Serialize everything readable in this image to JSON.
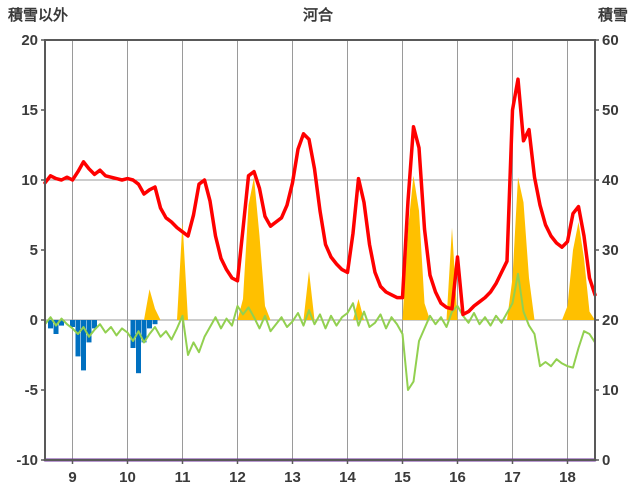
{
  "header": {
    "left_axis_title": "積雪以外",
    "title": "河合",
    "right_axis_title": "積雪"
  },
  "chart_data": {
    "type": "line",
    "title": "河合",
    "left_axis": {
      "label": "積雪以外",
      "min": -10,
      "max": 20,
      "ticks": [
        20,
        15,
        10,
        5,
        0,
        -5,
        -10
      ]
    },
    "right_axis": {
      "label": "積雪",
      "min": 0,
      "max": 60,
      "ticks": [
        60,
        50,
        40,
        30,
        20,
        10,
        0
      ]
    },
    "x_axis": {
      "min": 8.5,
      "max": 18.5,
      "ticks": [
        9,
        10,
        11,
        12,
        13,
        14,
        15,
        16,
        17,
        18
      ]
    },
    "h_gridlines_left": [
      0,
      10
    ],
    "colors": {
      "grid": "#9a9a9a",
      "border": "#595959",
      "background": "#ffffff"
    },
    "x": [
      8.5,
      8.6,
      8.7,
      8.8,
      8.9,
      9.0,
      9.1,
      9.2,
      9.3,
      9.4,
      9.5,
      9.6,
      9.7,
      9.8,
      9.9,
      10.0,
      10.1,
      10.2,
      10.3,
      10.4,
      10.5,
      10.6,
      10.7,
      10.8,
      10.9,
      11.0,
      11.1,
      11.2,
      11.3,
      11.4,
      11.5,
      11.6,
      11.7,
      11.8,
      11.9,
      12.0,
      12.1,
      12.2,
      12.3,
      12.4,
      12.5,
      12.6,
      12.7,
      12.8,
      12.9,
      13.0,
      13.1,
      13.2,
      13.3,
      13.4,
      13.5,
      13.6,
      13.7,
      13.8,
      13.9,
      14.0,
      14.1,
      14.2,
      14.3,
      14.4,
      14.5,
      14.6,
      14.7,
      14.8,
      14.9,
      15.0,
      15.1,
      15.2,
      15.3,
      15.4,
      15.5,
      15.6,
      15.7,
      15.8,
      15.9,
      16.0,
      16.1,
      16.2,
      16.3,
      16.4,
      16.5,
      16.6,
      16.7,
      16.8,
      16.9,
      17.0,
      17.1,
      17.2,
      17.3,
      17.4,
      17.5,
      17.6,
      17.7,
      17.8,
      17.9,
      18.0,
      18.1,
      18.2,
      18.3,
      18.4,
      18.5
    ],
    "series": [
      {
        "name": "orange-area",
        "type": "area",
        "axis": "left",
        "color": "#FFC000",
        "values": [
          0,
          0,
          0,
          0,
          0,
          0,
          0,
          0,
          0,
          0,
          0,
          0,
          0,
          0,
          0,
          0,
          0,
          0,
          0,
          2.2,
          0.8,
          0,
          0,
          0,
          0,
          7,
          0,
          0,
          0,
          0,
          0,
          0,
          0,
          0,
          0,
          0,
          1.5,
          8.2,
          10.2,
          6,
          1,
          0,
          0,
          0,
          0,
          0,
          0,
          0,
          3.5,
          0,
          0,
          0,
          0,
          0,
          0,
          0,
          0,
          1.5,
          0,
          0,
          0,
          0,
          0,
          0,
          0,
          0,
          6.5,
          10.3,
          7.8,
          1.2,
          0,
          0,
          0,
          0,
          6.6,
          0,
          0,
          0,
          0,
          0,
          0,
          0,
          0,
          0,
          0,
          3,
          10.2,
          8.4,
          3,
          0,
          0,
          0,
          0,
          0,
          0,
          1,
          5,
          7,
          4.4,
          0.6,
          0
        ]
      },
      {
        "name": "blue-bars",
        "type": "bar",
        "axis": "left",
        "color": "#0070C0",
        "values": [
          0,
          -0.6,
          -1.0,
          -0.4,
          0,
          -0.5,
          -2.6,
          -3.6,
          -1.6,
          -0.6,
          0,
          0,
          0,
          0,
          0,
          0,
          -2.0,
          -3.8,
          -1.6,
          -0.6,
          -0.3,
          0,
          0,
          0,
          0,
          0,
          0,
          0,
          0,
          0,
          0,
          0,
          0,
          0,
          0,
          0,
          0,
          0,
          0,
          0,
          0,
          0,
          0,
          0,
          0,
          0,
          0,
          0,
          0,
          0,
          0,
          0,
          0,
          0,
          0,
          0,
          0,
          0,
          0,
          0,
          0,
          0,
          0,
          0,
          0,
          0,
          0,
          0,
          0,
          0,
          0,
          0,
          0,
          0,
          0,
          0,
          0,
          0,
          0,
          0,
          0,
          0,
          0,
          0,
          0,
          0,
          0,
          0,
          0,
          0,
          0,
          0,
          0,
          0,
          0,
          0,
          0,
          0,
          0,
          0,
          0
        ]
      },
      {
        "name": "purple-line",
        "type": "line",
        "axis": "right",
        "color": "#7030A0",
        "width": 3,
        "constant": 0
      },
      {
        "name": "green-line",
        "type": "line",
        "axis": "left",
        "color": "#92D050",
        "width": 2,
        "values": [
          -0.3,
          0.2,
          -0.4,
          0.1,
          -0.3,
          -0.6,
          -1.0,
          -0.5,
          -1.2,
          -0.7,
          -0.3,
          -0.9,
          -0.5,
          -1.1,
          -0.6,
          -0.9,
          -1.5,
          -0.8,
          -1.6,
          -1.0,
          -0.5,
          -1.2,
          -0.8,
          -1.4,
          -0.6,
          0.3,
          -2.5,
          -1.6,
          -2.3,
          -1.2,
          -0.5,
          0.2,
          -0.6,
          0.1,
          -0.4,
          1.0,
          0.4,
          0.9,
          0.2,
          -0.6,
          0.3,
          -0.8,
          -0.3,
          0.2,
          -0.5,
          -0.1,
          0.5,
          -0.4,
          0.7,
          -0.3,
          0.4,
          -0.6,
          0.3,
          -0.4,
          0.2,
          0.5,
          1.2,
          -0.4,
          0.6,
          -0.5,
          -0.2,
          0.4,
          -0.6,
          0.2,
          -0.3,
          -1.0,
          -5.0,
          -4.4,
          -1.5,
          -0.6,
          0.3,
          -0.3,
          0.2,
          -0.5,
          0.6,
          1.0,
          0.3,
          -0.2,
          0.5,
          -0.3,
          0.2,
          -0.4,
          0.3,
          -0.2,
          0.5,
          1.2,
          3.3,
          0.6,
          -0.4,
          -1.0,
          -3.3,
          -3.0,
          -3.3,
          -2.8,
          -3.1,
          -3.3,
          -3.4,
          -2.0,
          -0.8,
          -1.0,
          -1.6
        ]
      },
      {
        "name": "red-line",
        "type": "line",
        "axis": "left",
        "color": "#FF0000",
        "width": 3.5,
        "values": [
          9.8,
          10.3,
          10.1,
          10.0,
          10.2,
          10.0,
          10.6,
          11.3,
          10.8,
          10.4,
          10.7,
          10.3,
          10.2,
          10.1,
          10.0,
          10.1,
          10.0,
          9.7,
          9.0,
          9.3,
          9.5,
          8.0,
          7.3,
          7.0,
          6.6,
          6.3,
          6.0,
          7.5,
          9.7,
          10.0,
          8.5,
          6.0,
          4.4,
          3.6,
          3.0,
          2.8,
          6.5,
          10.3,
          10.6,
          9.4,
          7.4,
          6.7,
          7.0,
          7.3,
          8.2,
          9.8,
          12.2,
          13.3,
          12.9,
          10.8,
          7.8,
          5.4,
          4.5,
          4.0,
          3.6,
          3.4,
          6.2,
          10.1,
          8.4,
          5.4,
          3.4,
          2.4,
          2.0,
          1.8,
          1.6,
          1.6,
          8.5,
          13.8,
          12.3,
          6.5,
          3.2,
          2.0,
          1.2,
          0.9,
          0.8,
          4.5,
          0.4,
          0.6,
          1.0,
          1.3,
          1.6,
          2.0,
          2.6,
          3.4,
          4.2,
          15.0,
          17.2,
          12.8,
          13.6,
          10.2,
          8.2,
          6.8,
          6.0,
          5.5,
          5.2,
          5.6,
          7.6,
          8.1,
          6.0,
          3.0,
          1.8
        ]
      }
    ]
  }
}
